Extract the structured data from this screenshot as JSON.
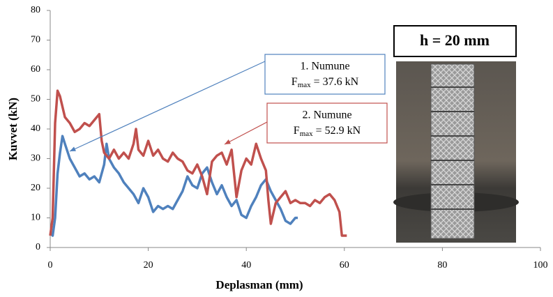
{
  "chart_data": {
    "type": "line",
    "xlabel": "Deplasman (mm)",
    "ylabel": "Kuvvet (kN)",
    "xlim": [
      0,
      100
    ],
    "xticks": [
      0,
      20,
      40,
      60,
      80,
      100
    ],
    "ylim": [
      0,
      80
    ],
    "yticks": [
      0,
      10,
      20,
      30,
      40,
      50,
      60,
      70,
      80
    ],
    "series": [
      {
        "color": "#4f81bd",
        "x": [
          0,
          0.5,
          1,
          1.5,
          2,
          2.5,
          3,
          4,
          5,
          6,
          7,
          8,
          9,
          10,
          11,
          11.5,
          12,
          13,
          14,
          15,
          16,
          17,
          18,
          19,
          20,
          21,
          22,
          23,
          24,
          25,
          26,
          27,
          28,
          29,
          30,
          31,
          32,
          33,
          34,
          35,
          36,
          37,
          38,
          39,
          40,
          41,
          42,
          43,
          44,
          45,
          46,
          47,
          48,
          49,
          50,
          50.5
        ],
        "values": [
          5,
          4,
          10,
          25,
          32,
          37.6,
          35,
          30,
          27,
          24,
          25,
          23,
          24,
          22,
          28,
          35,
          30,
          27,
          25,
          22,
          20,
          18,
          15,
          20,
          17,
          12,
          14,
          13,
          14,
          13,
          16,
          19,
          24,
          21,
          20,
          25,
          27,
          22,
          18,
          21,
          17,
          14,
          16,
          11,
          10,
          14,
          17,
          21,
          23,
          19,
          16,
          13,
          9,
          8,
          10,
          10
        ]
      },
      {
        "color": "#c0504d",
        "x": [
          0,
          0.5,
          1,
          1.5,
          2,
          3,
          4,
          5,
          6,
          7,
          8,
          9,
          10,
          10.5,
          11,
          12,
          13,
          14,
          15,
          16,
          17,
          17.5,
          18,
          19,
          20,
          21,
          22,
          23,
          24,
          25,
          26,
          27,
          28,
          29,
          30,
          31,
          32,
          33,
          34,
          35,
          36,
          37,
          38,
          39,
          40,
          41,
          42,
          43,
          44,
          44.5,
          45,
          46,
          47,
          48,
          49,
          50,
          51,
          52,
          53,
          54,
          55,
          56,
          57,
          58,
          59,
          59.5,
          60,
          60.5
        ],
        "values": [
          4,
          10,
          42,
          52.9,
          51,
          44,
          42,
          39,
          40,
          42,
          41,
          43,
          45,
          36,
          32,
          30,
          33,
          30,
          32,
          30,
          35,
          40,
          33,
          31,
          36,
          31,
          33,
          30,
          29,
          32,
          30,
          29,
          26,
          25,
          28,
          24,
          18,
          29,
          31,
          32,
          28,
          33,
          17,
          26,
          30,
          28,
          35,
          30,
          26,
          16,
          8,
          15,
          17,
          19,
          15,
          16,
          15,
          15,
          14,
          16,
          15,
          17,
          18,
          16,
          12,
          4,
          4,
          4
        ]
      }
    ],
    "annotations": [
      {
        "text": "1. Numune",
        "f": "F",
        "sub": "max",
        "rest": " = 37.6 kN"
      },
      {
        "text": "2. Numune",
        "f": "F",
        "sub": "max",
        "rest": " = 52.9 kN"
      }
    ],
    "photo_label": "h = 20 mm"
  }
}
